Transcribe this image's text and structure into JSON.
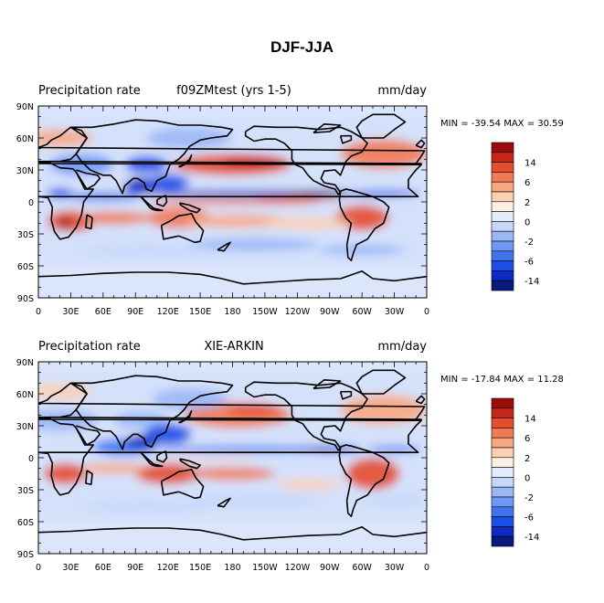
{
  "title": "DJF-JJA",
  "colors": {
    "levels": [
      "#0a1a7a",
      "#0b2bc4",
      "#1c4ee8",
      "#3f74f0",
      "#6f98f5",
      "#9ab7f6",
      "#c7d7fa",
      "#e3ecfd",
      "#fff0e4",
      "#fcd0b4",
      "#f8a781",
      "#f17a55",
      "#e44e2f",
      "#c8261a",
      "#9a0d0d"
    ],
    "coast": "#000000",
    "background": "#ffffff"
  },
  "colorbar": {
    "labels": [
      "14",
      "6",
      "2",
      "0",
      "-2",
      "-6",
      "-14"
    ]
  },
  "panels": [
    {
      "left_title": "Precipitation rate",
      "center_title": "f09ZMtest (yrs 1-5)",
      "right_title": "mm/day",
      "minmax": "MIN = -39.54 MAX =  30.59",
      "x_ticks": [
        "0",
        "30E",
        "60E",
        "90E",
        "120E",
        "150E",
        "180",
        "150W",
        "120W",
        "90W",
        "60W",
        "30W",
        "0"
      ],
      "y_ticks": [
        "90N",
        "60N",
        "30N",
        "0",
        "30S",
        "60S",
        "90S"
      ]
    },
    {
      "left_title": "Precipitation rate",
      "center_title": "XIE-ARKIN",
      "right_title": "mm/day",
      "minmax": "MIN = -17.84 MAX =  11.28",
      "x_ticks": [
        "0",
        "30E",
        "60E",
        "90E",
        "120E",
        "150E",
        "180",
        "150W",
        "120W",
        "90W",
        "60W",
        "30W",
        "0"
      ],
      "y_ticks": [
        "90N",
        "60N",
        "30N",
        "0",
        "30S",
        "60S",
        "90S"
      ]
    }
  ]
}
